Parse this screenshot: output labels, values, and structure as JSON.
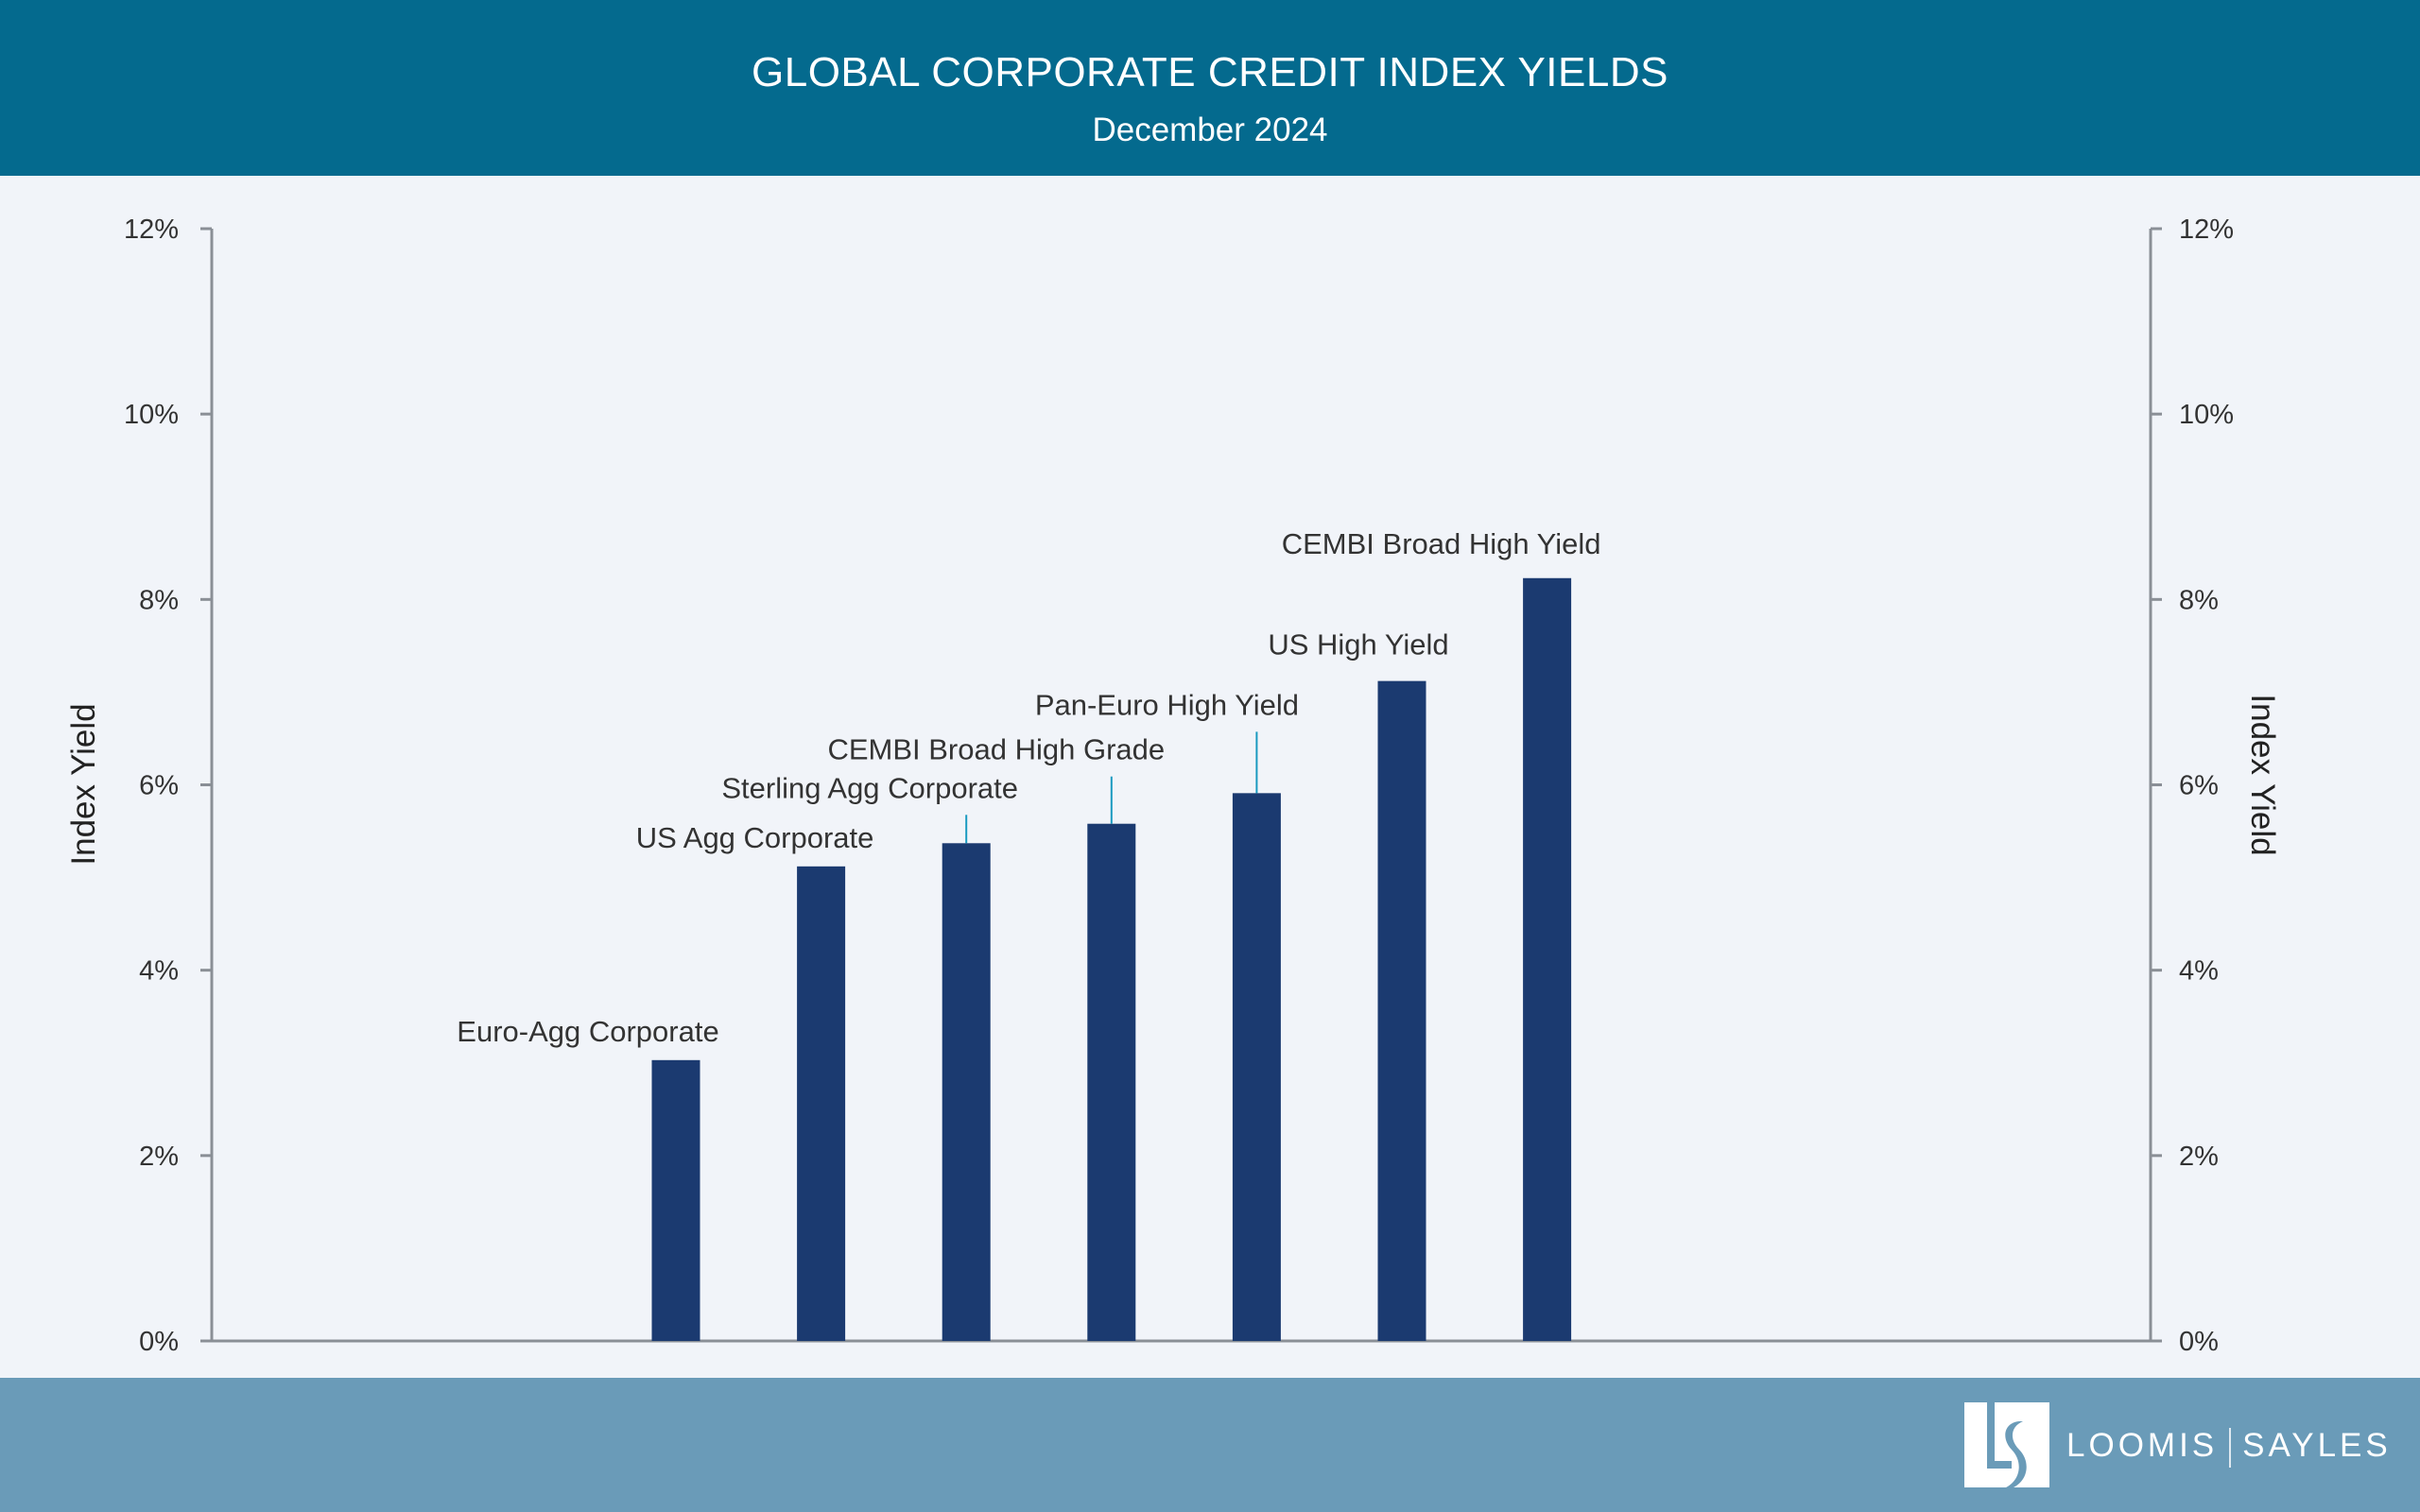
{
  "header": {
    "title": "GLOBAL CORPORATE CREDIT INDEX YIELDS",
    "subtitle": "December 2024"
  },
  "footer": {
    "logo_text_left": "LOOMIS",
    "logo_text_right": "SAYLES",
    "logo_monogram": "LS"
  },
  "colors": {
    "header": "#046a8e",
    "footer": "#6a9bb8",
    "bar": "#1b3a70",
    "leader": "#1a9ac0",
    "background": "#f1f4f9"
  },
  "chart_data": {
    "type": "bar",
    "title": "GLOBAL CORPORATE CREDIT INDEX YIELDS",
    "subtitle": "December 2024",
    "categories": [
      "Euro-Agg Corporate",
      "US Agg Corporate",
      "Sterling Agg Corporate",
      "CEMBI Broad High Grade",
      "Pan-Euro High Yield",
      "US High Yield",
      "CEMBI Broad High Yield"
    ],
    "values": [
      3.03,
      5.12,
      5.37,
      5.58,
      5.91,
      7.12,
      8.23
    ],
    "unit": "%",
    "ylabel": "Index Yield",
    "y2label": "Index Yield",
    "ylim": [
      0,
      12
    ],
    "yticks": [
      "0%",
      "2%",
      "4%",
      "6%",
      "8%",
      "10%",
      "12%"
    ],
    "grid": false,
    "legend": "none"
  }
}
